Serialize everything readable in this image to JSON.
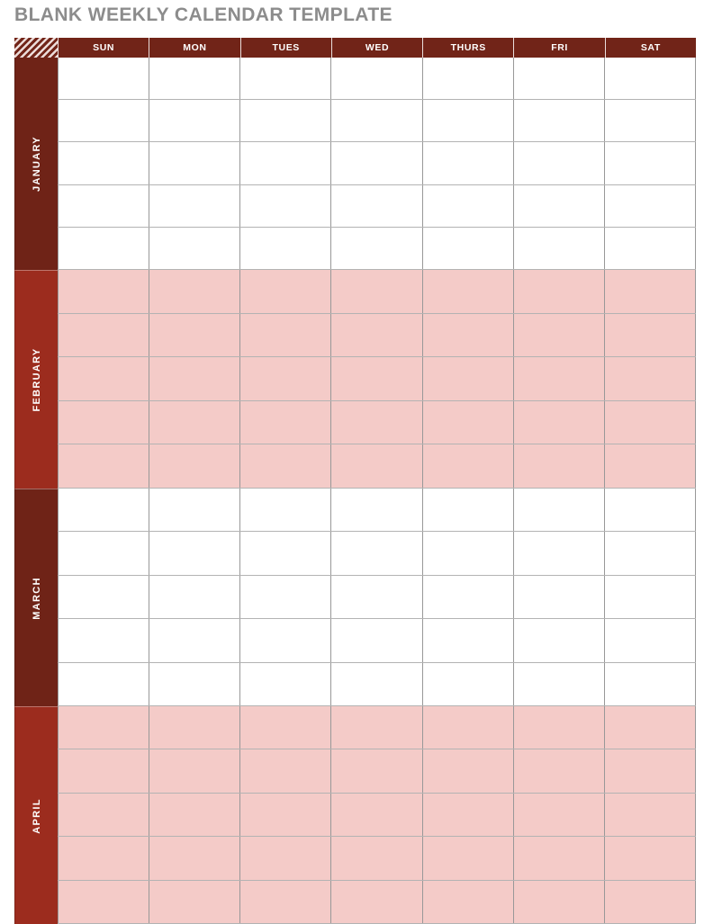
{
  "page": {
    "title": "BLANK WEEKLY CALENDAR TEMPLATE"
  },
  "calendar": {
    "day_headers": [
      "SUN",
      "MON",
      "TUES",
      "WED",
      "THURS",
      "FRI",
      "SAT"
    ],
    "months": [
      {
        "label": "JANUARY",
        "rows": 5,
        "theme": "dark"
      },
      {
        "label": "FEBRUARY",
        "rows": 5,
        "theme": "light"
      },
      {
        "label": "MARCH",
        "rows": 5,
        "theme": "dark"
      },
      {
        "label": "APRIL",
        "rows": 5,
        "theme": "light"
      }
    ],
    "colors": {
      "header_bg": "#712418",
      "dark_sidebar": "#6f2317",
      "light_sidebar": "#9c2c1e",
      "pink_cell": "#f4cbc8",
      "white_cell": "#ffffff",
      "grid_line": "#989898",
      "title_text": "#8c8c8c",
      "header_text": "#ffffff"
    }
  }
}
